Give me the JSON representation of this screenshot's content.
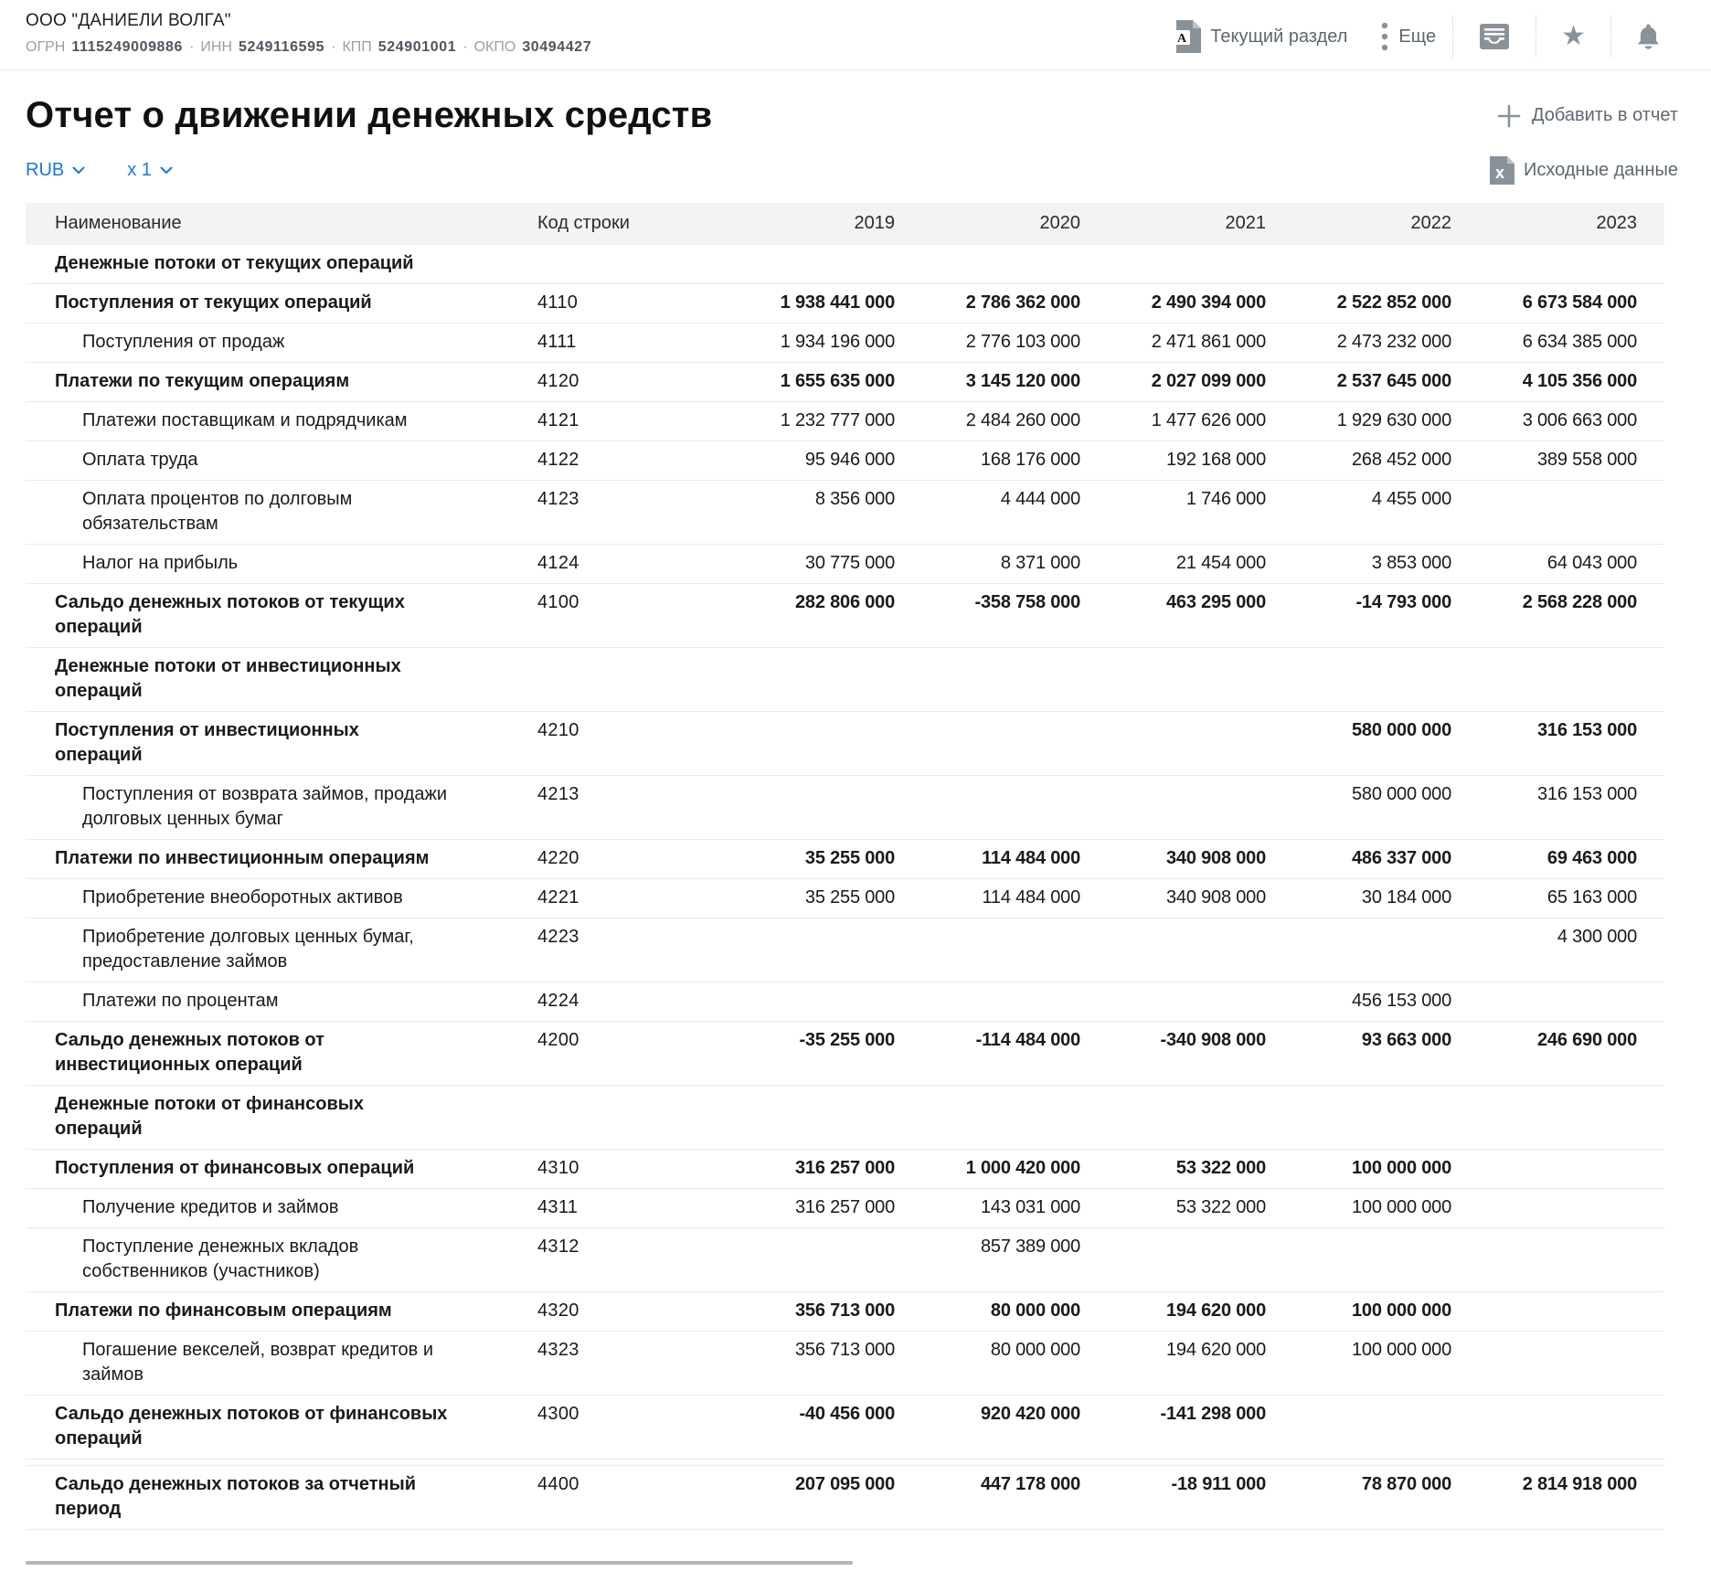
{
  "company": {
    "name": "ООО \"ДАНИЕЛИ ВОЛГА\"",
    "reg_separator": "·",
    "registration": [
      {
        "label": "ОГРН",
        "value": "1115249009886"
      },
      {
        "label": "ИНН",
        "value": "5249116595"
      },
      {
        "label": "КПП",
        "value": "524901001"
      },
      {
        "label": "ОКПО",
        "value": "30494427"
      }
    ]
  },
  "toolbar": {
    "current_section_label": "Текущий раздел",
    "more_label": "Еще",
    "icons": [
      "pdf-icon",
      "kebab-dots-icon",
      "archive-tray-icon",
      "star-icon",
      "bell-icon"
    ]
  },
  "page": {
    "title": "Отчет о движении денежных средств",
    "add_to_report_label": "Добавить в отчет",
    "source_data_label": "Исходные данные",
    "currency_value": "RUB",
    "multiplier_value": "x 1"
  },
  "colors": {
    "accent_blue": "#1a78d2",
    "icon_gray": "#8a9299",
    "header_bg": "#f4f3f1",
    "row_border": "#e9e9e9"
  },
  "table": {
    "headers": [
      "Наименование",
      "Код строки",
      "2019",
      "2020",
      "2021",
      "2022",
      "2023"
    ],
    "rows": [
      {
        "name": "Денежные потоки от текущих операций",
        "code": "",
        "type": "section",
        "values": [
          "",
          "",
          "",
          "",
          ""
        ]
      },
      {
        "name": "Поступления от текущих операций",
        "code": "4110",
        "type": "total",
        "values": [
          "1 938 441 000",
          "2 786 362 000",
          "2 490 394 000",
          "2 522 852 000",
          "6 673 584 000"
        ]
      },
      {
        "name": "Поступления от продаж",
        "code": "4111",
        "type": "detail",
        "values": [
          "1 934 196 000",
          "2 776 103 000",
          "2 471 861 000",
          "2 473 232 000",
          "6 634 385 000"
        ]
      },
      {
        "name": "Платежи по текущим операциям",
        "code": "4120",
        "type": "total",
        "values": [
          "1 655 635 000",
          "3 145 120 000",
          "2 027 099 000",
          "2 537 645 000",
          "4 105 356 000"
        ]
      },
      {
        "name": "Платежи поставщикам и подрядчикам",
        "code": "4121",
        "type": "detail",
        "values": [
          "1 232 777 000",
          "2 484 260 000",
          "1 477 626 000",
          "1 929 630 000",
          "3 006 663 000"
        ]
      },
      {
        "name": "Оплата труда",
        "code": "4122",
        "type": "detail",
        "values": [
          "95 946 000",
          "168 176 000",
          "192 168 000",
          "268 452 000",
          "389 558 000"
        ]
      },
      {
        "name": "Оплата процентов по долговым обязательствам",
        "code": "4123",
        "type": "detail",
        "values": [
          "8 356 000",
          "4 444 000",
          "1 746 000",
          "4 455 000",
          ""
        ]
      },
      {
        "name": "Налог на прибыль",
        "code": "4124",
        "type": "detail",
        "values": [
          "30 775 000",
          "8 371 000",
          "21 454 000",
          "3 853 000",
          "64 043 000"
        ]
      },
      {
        "name": "Сальдо денежных потоков от текущих операций",
        "code": "4100",
        "type": "total",
        "values": [
          "282 806 000",
          "-358 758 000",
          "463 295 000",
          "-14 793 000",
          "2 568 228 000"
        ]
      },
      {
        "name": "Денежные потоки от инвестиционных операций",
        "code": "",
        "type": "section",
        "values": [
          "",
          "",
          "",
          "",
          ""
        ]
      },
      {
        "name": "Поступления от инвестиционных операций",
        "code": "4210",
        "type": "total",
        "values": [
          "",
          "",
          "",
          "580 000 000",
          "316 153 000"
        ]
      },
      {
        "name": "Поступления от возврата займов, продажи долговых ценных бумаг",
        "code": "4213",
        "type": "detail",
        "values": [
          "",
          "",
          "",
          "580 000 000",
          "316 153 000"
        ]
      },
      {
        "name": "Платежи по инвестиционным операциям",
        "code": "4220",
        "type": "total",
        "values": [
          "35 255 000",
          "114 484 000",
          "340 908 000",
          "486 337 000",
          "69 463 000"
        ]
      },
      {
        "name": "Приобретение внеоборотных активов",
        "code": "4221",
        "type": "detail",
        "values": [
          "35 255 000",
          "114 484 000",
          "340 908 000",
          "30 184 000",
          "65 163 000"
        ]
      },
      {
        "name": "Приобретение долговых ценных бумаг, предоставление займов",
        "code": "4223",
        "type": "detail",
        "values": [
          "",
          "",
          "",
          "",
          "4 300 000"
        ]
      },
      {
        "name": "Платежи по процентам",
        "code": "4224",
        "type": "detail",
        "values": [
          "",
          "",
          "",
          "456 153 000",
          ""
        ]
      },
      {
        "name": "Сальдо денежных потоков от инвестиционных операций",
        "code": "4200",
        "type": "total",
        "values": [
          "-35 255 000",
          "-114 484 000",
          "-340 908 000",
          "93 663 000",
          "246 690 000"
        ]
      },
      {
        "name": "Денежные потоки от финансовых операций",
        "code": "",
        "type": "section",
        "values": [
          "",
          "",
          "",
          "",
          ""
        ]
      },
      {
        "name": "Поступления от финансовых операций",
        "code": "4310",
        "type": "total",
        "values": [
          "316 257 000",
          "1 000 420 000",
          "53 322 000",
          "100 000 000",
          ""
        ]
      },
      {
        "name": "Получение кредитов и займов",
        "code": "4311",
        "type": "detail",
        "values": [
          "316 257 000",
          "143 031 000",
          "53 322 000",
          "100 000 000",
          ""
        ]
      },
      {
        "name": "Поступление денежных вкладов собственников (участников)",
        "code": "4312",
        "type": "detail",
        "values": [
          "",
          "857 389 000",
          "",
          "",
          ""
        ]
      },
      {
        "name": "Платежи по финансовым операциям",
        "code": "4320",
        "type": "total",
        "values": [
          "356 713 000",
          "80 000 000",
          "194 620 000",
          "100 000 000",
          ""
        ]
      },
      {
        "name": "Погашение векселей, возврат кредитов и займов",
        "code": "4323",
        "type": "detail",
        "values": [
          "356 713 000",
          "80 000 000",
          "194 620 000",
          "100 000 000",
          ""
        ]
      },
      {
        "name": "Сальдо денежных потоков от финансовых операций",
        "code": "4300",
        "type": "total",
        "values": [
          "-40 456 000",
          "920 420 000",
          "-141 298 000",
          "",
          ""
        ]
      },
      {
        "name": "Сальдо денежных потоков за отчетный период",
        "code": "4400",
        "type": "grand",
        "values": [
          "207 095 000",
          "447 178 000",
          "-18 911 000",
          "78 870 000",
          "2 814 918 000"
        ]
      }
    ]
  }
}
